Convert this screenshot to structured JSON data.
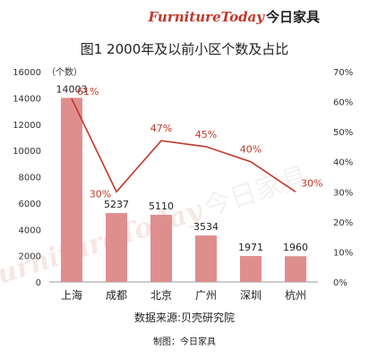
{
  "brand": {
    "name_latin": "FurnitureToday",
    "name_cn": "今日家具"
  },
  "chart_data": {
    "type": "bar",
    "title": "图1  2000年及以前小区个数及占比",
    "categories": [
      "上海",
      "成都",
      "北京",
      "广州",
      "深圳",
      "杭州"
    ],
    "series": [
      {
        "type": "bar",
        "axis": "left",
        "values": [
          14003,
          5237,
          5110,
          3534,
          1971,
          1960
        ],
        "data_labels": [
          "14003",
          "5237",
          "5110",
          "3534",
          "1971",
          "1960"
        ]
      },
      {
        "type": "line",
        "axis": "right",
        "values": [
          61,
          30,
          47,
          45,
          40,
          30
        ],
        "data_labels": [
          "61%",
          "30%",
          "47%",
          "45%",
          "40%",
          "30%"
        ]
      }
    ],
    "y_left": {
      "unit_label": "（个数）",
      "ylim": [
        0,
        16000
      ],
      "ticks": [
        "0",
        "2000",
        "4000",
        "6000",
        "8000",
        "10000",
        "12000",
        "14000",
        "16000"
      ]
    },
    "y_right": {
      "ylim": [
        0,
        70
      ],
      "ticks": [
        "0%",
        "10%",
        "20%",
        "30%",
        "40%",
        "50%",
        "60%",
        "70%"
      ]
    },
    "grid": false,
    "legend": "none",
    "colors": {
      "bar": "#df8e8e",
      "line": "#c0392b",
      "text": "#222222",
      "axis": "#999999"
    },
    "source": "数据来源:贝壳研究院",
    "credit": "制图：今日家具"
  }
}
